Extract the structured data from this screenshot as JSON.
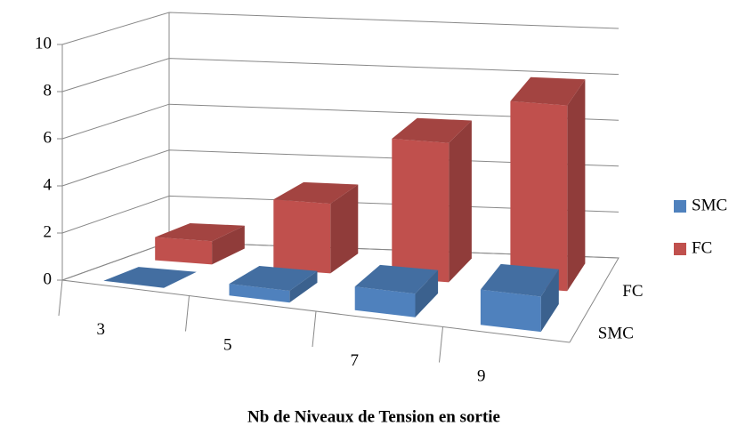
{
  "chart_data": {
    "type": "bar3d",
    "x_label": "Nb de Niveaux  de Tension en sortie",
    "categories": [
      "3",
      "5",
      "7",
      "9"
    ],
    "series": [
      {
        "name": "SMC",
        "color": "#4f81bd",
        "values": [
          0,
          0.5,
          1,
          1.5
        ]
      },
      {
        "name": "FC",
        "color": "#c0504d",
        "values": [
          1,
          3,
          6,
          8
        ]
      }
    ],
    "ylim": [
      0,
      10
    ],
    "yticks": [
      0,
      2,
      4,
      6,
      8,
      10
    ],
    "grid": true,
    "legend": "right"
  }
}
